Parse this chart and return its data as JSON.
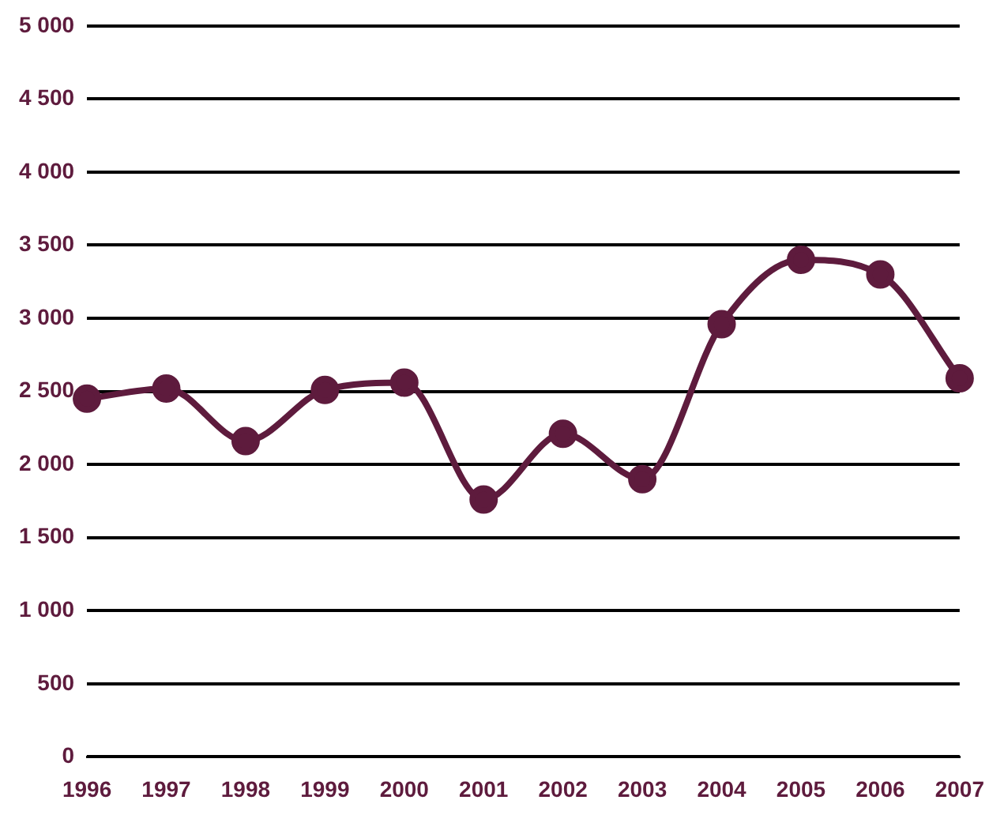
{
  "chart_data": {
    "type": "line",
    "categories": [
      "1996",
      "1997",
      "1998",
      "1999",
      "2000",
      "2001",
      "2002",
      "2003",
      "2004",
      "2005",
      "2006",
      "2007"
    ],
    "series": [
      {
        "color": "#5e1b3d",
        "values": [
          2450,
          2520,
          2160,
          2510,
          2560,
          1760,
          2210,
          1900,
          2960,
          3400,
          3300,
          2590
        ]
      }
    ],
    "ylim": [
      0,
      5000
    ],
    "yticks": [
      {
        "value": 0,
        "label": "0"
      },
      {
        "value": 500,
        "label": "500"
      },
      {
        "value": 1000,
        "label": "1 000"
      },
      {
        "value": 1500,
        "label": "1 500"
      },
      {
        "value": 2000,
        "label": "2 000"
      },
      {
        "value": 2500,
        "label": "2 500"
      },
      {
        "value": 3000,
        "label": "3 000"
      },
      {
        "value": 3500,
        "label": "3 500"
      },
      {
        "value": 4000,
        "label": "4 000"
      },
      {
        "value": 4500,
        "label": "4 500"
      },
      {
        "value": 5000,
        "label": "5 000"
      }
    ],
    "grid": "y",
    "legend": false,
    "marker": "circle",
    "line_style": "solid"
  }
}
